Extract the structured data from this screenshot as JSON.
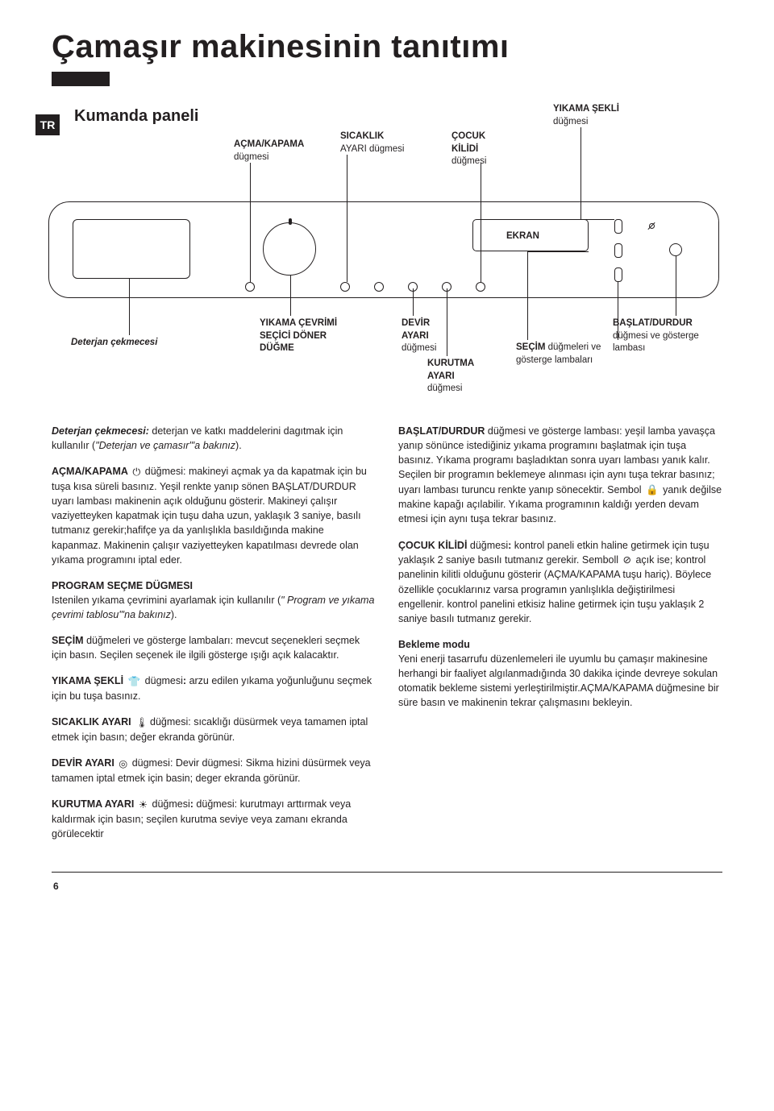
{
  "page": {
    "title": "Çamaşır makinesinin tanıtımı",
    "lang_tab": "TR",
    "page_number": "6"
  },
  "panel": {
    "heading": "Kumanda paneli",
    "labels": {
      "acma_kapama_b": "AÇMA/KAPAMA",
      "acma_kapama_r": "dügmesi",
      "sicaklik_b": "SICAKLIK",
      "sicaklik_r": "AYARI dügmesi",
      "cocuk_b": "ÇOCUK KİLİDİ",
      "cocuk_r": "düğmesi",
      "yikama_sekli_b": "YIKAMA ŞEKLİ",
      "yikama_sekli_r": "düğmesi",
      "ekran": "EKRAN",
      "deterjan_b": "Deterjan çekmecesi",
      "yikama_cevrimi_b": "YIKAMA ÇEVRİMİ SEÇİCİ DÖNER DÜĞME",
      "devir_b": "DEVİR AYARI",
      "devir_r": "düğmesi",
      "kurutma_b": "KURUTMA AYARI",
      "kurutma_r": "düğmesi",
      "secim_b": "SEÇİM",
      "secim_r": " düğmeleri ve gösterge lambaları",
      "baslat_b": "BAŞLAT/DURDUR",
      "baslat_r": "düğmesi ve gösterge lambası"
    }
  },
  "body": {
    "left": [
      {
        "html": "<b><i>Deterjan çekmecesi:</i></b> deterjan ve katkı maddelerini dagıtmak için kullanılır (<i>\"Deterjan ve çamasır\"'a bakınız</i>)."
      },
      {
        "html": "<b>AÇMA/KAPAMA</b> <span class='inline-icon'>⏻</span> düğmesi: makineyi açmak ya da kapatmak için bu tuşa kısa süreli basınız. Yeşil renkte yanıp sönen BAŞLAT/DURDUR uyarı lambası makinenin açık olduğunu gösterir. Makineyi çalışır vaziyetteyken kapatmak için tuşu daha uzun, yaklaşık 3 saniye, basılı tutmanız gerekir;hafifçe ya da yanlışlıkla basıldığında makine kapanmaz. Makinenin çalışır vaziyetteyken kapatılması devrede olan yıkama programını iptal eder."
      },
      {
        "html": "<b>PROGRAM SEÇME DÜGMESI</b><br>Istenilen yıkama çevrimini ayarlamak için kullanılır (<i>\"  Program ve yıkama çevrimi tablosu\"'na bakınız</i>)."
      },
      {
        "html": "<b>SEÇİM</b> düğmeleri ve gösterge lambaları: mevcut seçenekleri seçmek için basın. Seçilen seçenek ile ilgili gösterge ışığı açık kalacaktır."
      },
      {
        "html": "<b>YIKAMA ŞEKLİ</b> <span class='inline-icon'>👕</span> dügmesi<b>:</b> arzu edilen yıkama yoğunluğunu seçmek için bu tuşa basınız."
      },
      {
        "html": "<b>SICAKLIK AYARI</b> <span class='inline-icon'>🌡</span>düğmesi: sıcaklığı düsürmek veya tamamen iptal etmek için basın; değer ekranda görünür."
      },
      {
        "html": "<b>DEVİR AYARI</b> <span class='inline-icon'>◎</span> dügmesi: Devir dügmesi: Sikma hizini düsürmek veya tamamen iptal etmek için basin; deger ekranda görünür."
      },
      {
        "html": "<b>KURUTMA AYARI</b> <span class='inline-icon'>☀</span> düğmesi<b>:</b> düğmesi: kurutmayı arttırmak veya kaldırmak için basın; seçilen kurutma seviye veya zamanı ekranda görülecektir"
      }
    ],
    "right": [
      {
        "html": "<b>BAŞLAT/DURDUR</b> düğmesi ve gösterge lambası: yeşil lamba yavaşça yanıp sönünce istediğiniz yıkama programını başlatmak için tuşa basınız. Yıkama programı başladıktan sonra uyarı lambası yanık kalır. Seçilen bir programın beklemeye alınması için aynı tuşa tekrar basınız; uyarı lambası turuncu renkte yanıp sönecektir. Sembol <span class='inline-icon'>🔒</span> yanık değilse makine kapağı açılabilir. Yıkama programının kaldığı yerden devam etmesi için aynı tuşa tekrar basınız."
      },
      {
        "html": "<b>ÇOCUK KİLİDİ</b> düğmesi<b>:</b> kontrol paneli etkin haline getirmek için tuşu yaklaşık 2 saniye basılı tutmanız gerekir. Semboll <span class='inline-icon'>⊘</span> açık ise; kontrol panelinin kilitli olduğunu gösterir (AÇMA/KAPAMA tuşu hariç). Böylece özellikle çocuklarınız varsa programın yanlışlıkla değiştirilmesi engellenir. kontrol panelini etkisiz haline getirmek için tuşu yaklaşık 2 saniye basılı tutmanız gerekir."
      },
      {
        "html": "<b>Bekleme modu</b><br>Yeni enerji tasarrufu düzenlemeleri ile uyumlu bu çamaşır makinesine herhangi bir faaliyet algılanmadığında 30 dakika içinde devreye sokulan otomatik bekleme sistemi yerleştirilmiştir.AÇMA/KAPAMA düğmesine bir süre basın ve makinenin tekrar çalışmasını bekleyin."
      }
    ]
  }
}
